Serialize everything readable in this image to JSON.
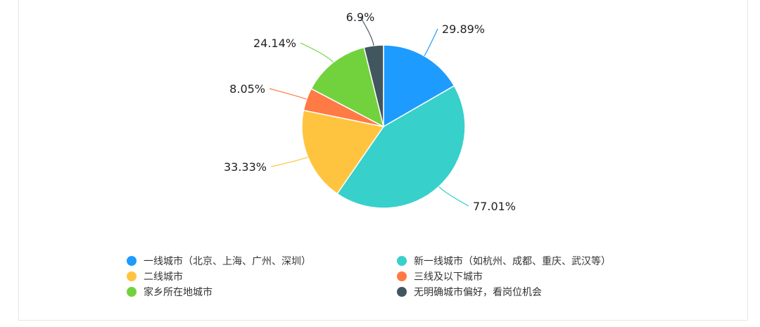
{
  "chart_data": {
    "type": "pie",
    "title": "",
    "slices": [
      {
        "name": "一线城市（北京、上海、广州、深圳）",
        "value": 29.89,
        "label": "29.89%",
        "color": "#1e9bff"
      },
      {
        "name": "新一线城市（如杭州、成都、重庆、武汉等）",
        "value": 77.01,
        "label": "77.01%",
        "color": "#38d0ca"
      },
      {
        "name": "二线城市",
        "value": 33.33,
        "label": "33.33%",
        "color": "#ffc43f"
      },
      {
        "name": "三线及以下城市",
        "value": 8.05,
        "label": "8.05%",
        "color": "#ff7a45"
      },
      {
        "name": "家乡所在地城市",
        "value": 24.14,
        "label": "24.14%",
        "color": "#72d23e"
      },
      {
        "name": "无明确城市偏好，看岗位机会",
        "value": 6.9,
        "label": "6.9%",
        "color": "#425660"
      }
    ],
    "legend_position": "bottom"
  }
}
